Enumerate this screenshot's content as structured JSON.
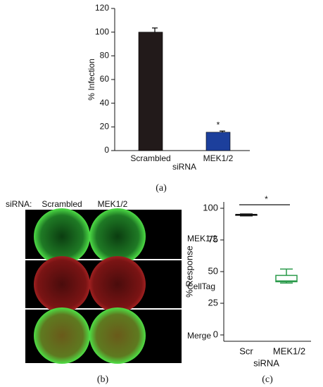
{
  "chart_data": [
    {
      "type": "bar",
      "y_label": "% Infection",
      "x_label": "siRNA",
      "categories": [
        "Scrambled",
        "MEK1/2"
      ],
      "values": [
        100,
        15.5
      ],
      "errors": [
        3.5,
        1
      ],
      "colors": [
        "#221a1a",
        "#1c3f9c"
      ],
      "ylim": [
        0,
        120
      ],
      "yticks": [
        0,
        20,
        40,
        60,
        80,
        100,
        120
      ],
      "annotation": "*",
      "panel_label": "(a)"
    },
    {
      "type": "box",
      "y_label": "% Response",
      "x_label": "siRNA",
      "categories": [
        "Scr",
        "MEK1/2"
      ],
      "boxes": [
        {
          "min": 94,
          "q1": 94.5,
          "median": 95,
          "q3": 95,
          "max": 95.5,
          "color": "#111111"
        },
        {
          "min": 41,
          "q1": 42,
          "median": 42.5,
          "q3": 47,
          "max": 52,
          "color": "#2a9a4a"
        }
      ],
      "ylim": [
        -5,
        105
      ],
      "yticks": [
        0,
        25,
        50,
        75,
        100
      ],
      "annotation": "*",
      "panel_label": "(c)"
    }
  ],
  "panel_b": {
    "row_header": "siRNA:",
    "columns": [
      "Scrambled",
      "MEK1/2"
    ],
    "rows": [
      "MEK1/2",
      "CellTag",
      "Merge"
    ],
    "panel_label": "(b)"
  }
}
